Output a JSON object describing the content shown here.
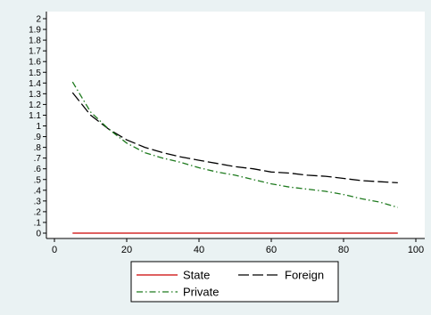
{
  "chart_data": {
    "type": "line",
    "xlim": [
      0,
      100
    ],
    "ylim": [
      0,
      2
    ],
    "x_ticks": [
      0,
      20,
      40,
      60,
      80,
      100
    ],
    "x_tick_labels": [
      "0",
      "20",
      "40",
      "60",
      "80",
      "100"
    ],
    "y_ticks": [
      0,
      0.1,
      0.2,
      0.3,
      0.4,
      0.5,
      0.6,
      0.7,
      0.8,
      0.9,
      1,
      1.1,
      1.2,
      1.3,
      1.4,
      1.5,
      1.6,
      1.7,
      1.8,
      1.9,
      2
    ],
    "y_tick_labels": [
      "0",
      ".1",
      ".2",
      ".3",
      ".4",
      ".5",
      ".6",
      ".7",
      ".8",
      ".9",
      "1",
      "1.1",
      "1.2",
      "1.3",
      "1.4",
      "1.5",
      "1.6",
      "1.7",
      "1.8",
      "1.9",
      "2"
    ],
    "grid": false,
    "legend_position": "bottom",
    "x": [
      5,
      10,
      15,
      20,
      25,
      30,
      35,
      40,
      45,
      50,
      55,
      60,
      65,
      70,
      75,
      80,
      85,
      90,
      95
    ],
    "series": [
      {
        "name": "State",
        "color": "#cc0000",
        "dash": "solid",
        "values": [
          0,
          0,
          0,
          0,
          0,
          0,
          0,
          0,
          0,
          0,
          0,
          0,
          0,
          0,
          0,
          0,
          0,
          0,
          0
        ]
      },
      {
        "name": "Foreign",
        "color": "#000000",
        "dash": "long-dash",
        "values": [
          1.31,
          1.1,
          0.97,
          0.87,
          0.8,
          0.75,
          0.71,
          0.68,
          0.65,
          0.62,
          0.6,
          0.57,
          0.56,
          0.54,
          0.53,
          0.51,
          0.49,
          0.48,
          0.47
        ]
      },
      {
        "name": "Private",
        "color": "#1e7a1e",
        "dash": "dash-dot",
        "values": [
          1.41,
          1.13,
          0.97,
          0.84,
          0.75,
          0.7,
          0.66,
          0.61,
          0.57,
          0.54,
          0.5,
          0.46,
          0.43,
          0.41,
          0.39,
          0.36,
          0.32,
          0.29,
          0.24
        ]
      }
    ]
  }
}
